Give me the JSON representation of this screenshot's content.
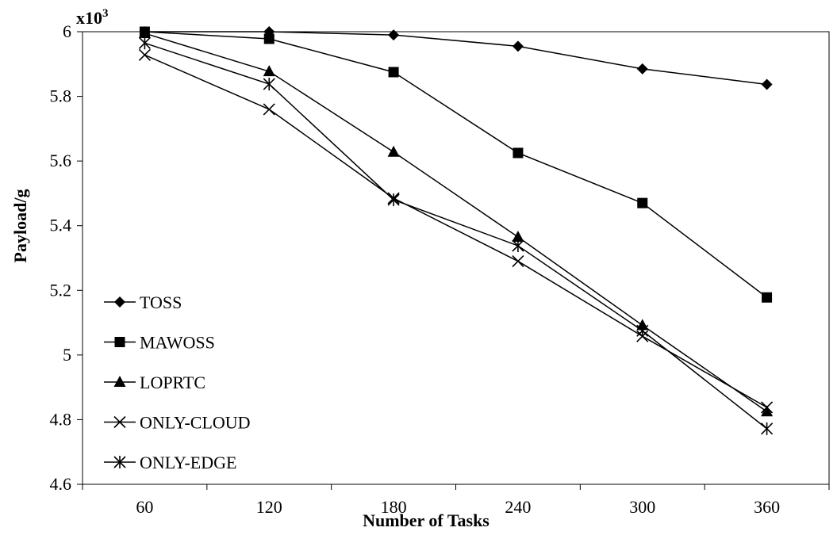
{
  "chart_data": {
    "type": "line",
    "title": "",
    "xlabel": "Number of Tasks",
    "ylabel": "Payload/g",
    "y_multiplier_label": "x10",
    "y_multiplier_exponent": "3",
    "categories": [
      "60",
      "120",
      "180",
      "240",
      "300",
      "360"
    ],
    "ylim": [
      4.6,
      6
    ],
    "yticks": [
      "4.6",
      "4.8",
      "5",
      "5.2",
      "5.4",
      "5.6",
      "5.8",
      "6"
    ],
    "grid": false,
    "legend_position": "bottom-left",
    "series": [
      {
        "name": "TOSS",
        "marker": "diamond",
        "values": [
          6.0,
          6.0,
          5.99,
          5.955,
          5.885,
          5.837
        ]
      },
      {
        "name": "MAWOSS",
        "marker": "square",
        "values": [
          6.0,
          5.978,
          5.875,
          5.625,
          5.47,
          5.178
        ]
      },
      {
        "name": "LOPRTC",
        "marker": "triangle",
        "values": [
          5.995,
          5.877,
          5.628,
          5.365,
          5.092,
          4.825
        ]
      },
      {
        "name": "ONLY-CLOUD",
        "marker": "x",
        "values": [
          5.928,
          5.76,
          5.485,
          5.29,
          5.058,
          4.838
        ]
      },
      {
        "name": "ONLY-EDGE",
        "marker": "asterisk",
        "values": [
          5.965,
          5.838,
          5.48,
          5.338,
          5.075,
          4.772
        ]
      }
    ]
  }
}
